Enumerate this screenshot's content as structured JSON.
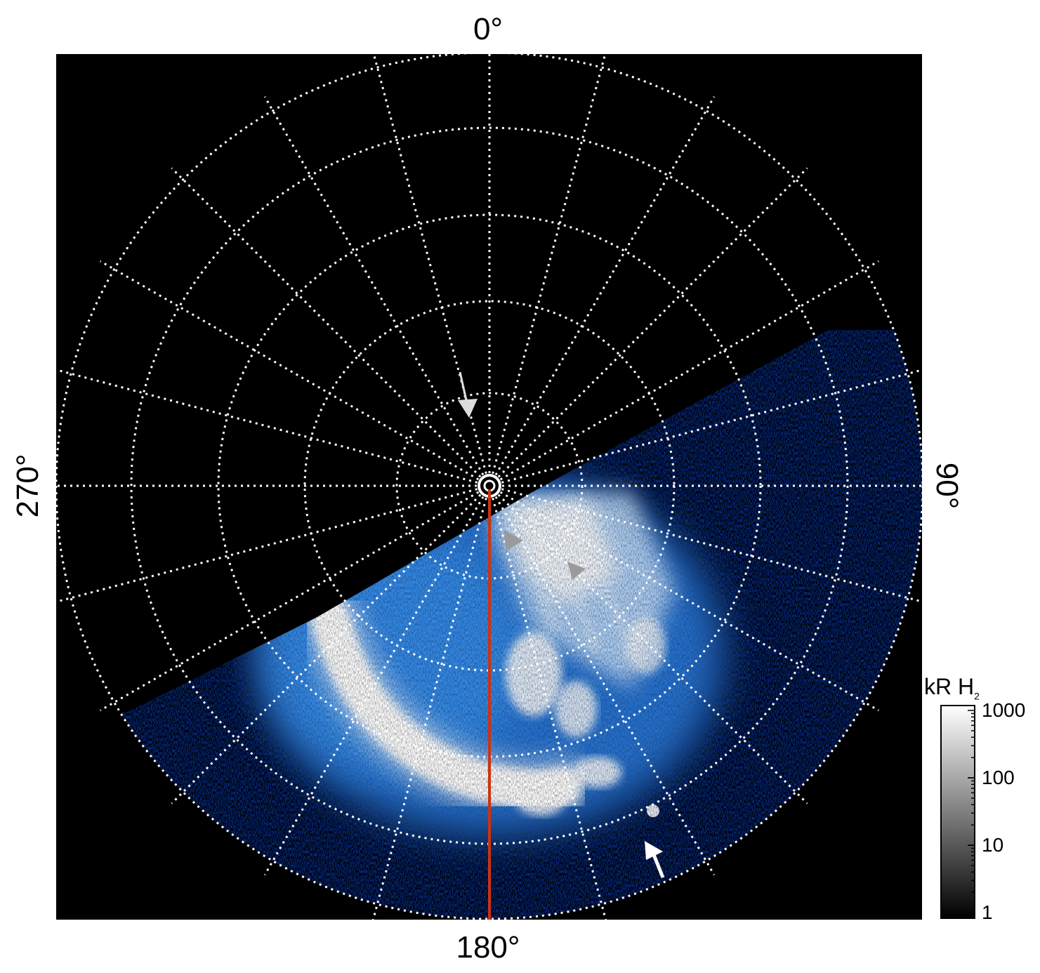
{
  "labels": {
    "top": "0°",
    "bottom": "180°",
    "left": "270°",
    "right": "90°"
  },
  "colorbar": {
    "unit": "kR H",
    "unit_sub": "2",
    "ticks": [
      "1000",
      "100",
      "10",
      "1"
    ],
    "tick_values": [
      1000,
      100,
      10,
      1
    ],
    "range": [
      1,
      1000
    ],
    "scale": "log"
  },
  "colors": {
    "background": "#000000",
    "grid": "#ffffff",
    "aurora_deep": "#0a3fd8",
    "aurora_mid": "#2f86ef",
    "aurora_bright": "#ffffff",
    "meridian_line": "#cc3311",
    "arrow_gray": "#aaaaaa",
    "arrow_white": "#ffffff"
  }
}
